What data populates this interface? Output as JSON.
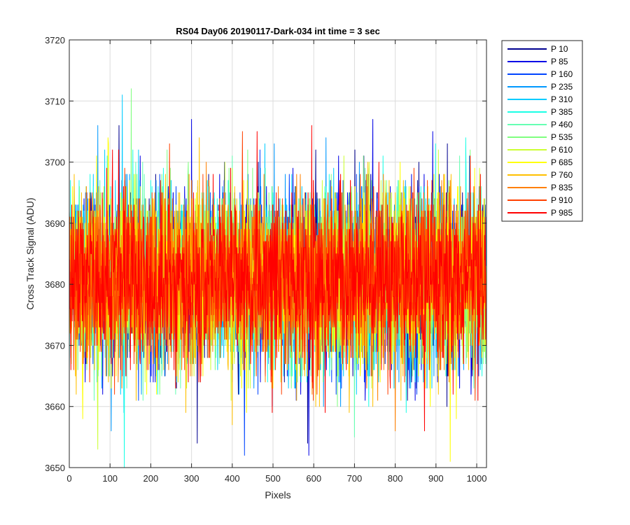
{
  "chart_data": {
    "type": "line",
    "title": "RS04 Day06 20190117-Dark-034 int time = 3 sec",
    "xlabel": "Pixels",
    "ylabel": "Cross Track Signal (ADU)",
    "xlim": [
      0,
      1024
    ],
    "ylim": [
      3650,
      3720
    ],
    "xticks": [
      0,
      100,
      200,
      300,
      400,
      500,
      600,
      700,
      800,
      900,
      1000
    ],
    "yticks": [
      3650,
      3660,
      3670,
      3680,
      3690,
      3700,
      3710,
      3720
    ],
    "grid": true,
    "legend_position": "outside-right",
    "noise_center": 3681,
    "noise_sigma": 7,
    "series": [
      {
        "name": "P 10",
        "color": "#00008f",
        "peaks": [
          {
            "x": 585,
            "y": 3654
          }
        ]
      },
      {
        "name": "P 85",
        "color": "#0000e6",
        "peaks": [
          {
            "x": 300,
            "y": 3707
          },
          {
            "x": 745,
            "y": 3707
          },
          {
            "x": 588,
            "y": 3652
          }
        ]
      },
      {
        "name": "P 160",
        "color": "#0044ff",
        "peaks": [
          {
            "x": 430,
            "y": 3652
          }
        ]
      },
      {
        "name": "P 235",
        "color": "#0099ff",
        "peaks": [
          {
            "x": 70,
            "y": 3706
          }
        ]
      },
      {
        "name": "P 310",
        "color": "#00ccff",
        "peaks": [
          {
            "x": 130,
            "y": 3711
          }
        ]
      },
      {
        "name": "P 385",
        "color": "#1affe6",
        "peaks": [
          {
            "x": 135,
            "y": 3650
          }
        ]
      },
      {
        "name": "P 460",
        "color": "#66ffb3",
        "peaks": [
          {
            "x": 700,
            "y": 3655
          }
        ]
      },
      {
        "name": "P 535",
        "color": "#80ff80",
        "peaks": [
          {
            "x": 152,
            "y": 3712
          }
        ]
      },
      {
        "name": "P 610",
        "color": "#ccff33",
        "peaks": [
          {
            "x": 70,
            "y": 3653
          }
        ]
      },
      {
        "name": "P 685",
        "color": "#ffff00",
        "peaks": [
          {
            "x": 935,
            "y": 3651
          }
        ]
      },
      {
        "name": "P 760",
        "color": "#ffc000",
        "peaks": [
          {
            "x": 400,
            "y": 3657
          }
        ]
      },
      {
        "name": "P 835",
        "color": "#ff8000",
        "peaks": [
          {
            "x": 800,
            "y": 3656
          }
        ]
      },
      {
        "name": "P 910",
        "color": "#ff4000",
        "peaks": [
          {
            "x": 425,
            "y": 3705
          }
        ]
      },
      {
        "name": "P 985",
        "color": "#ff0000",
        "peaks": [
          {
            "x": 595,
            "y": 3706
          }
        ]
      }
    ]
  }
}
